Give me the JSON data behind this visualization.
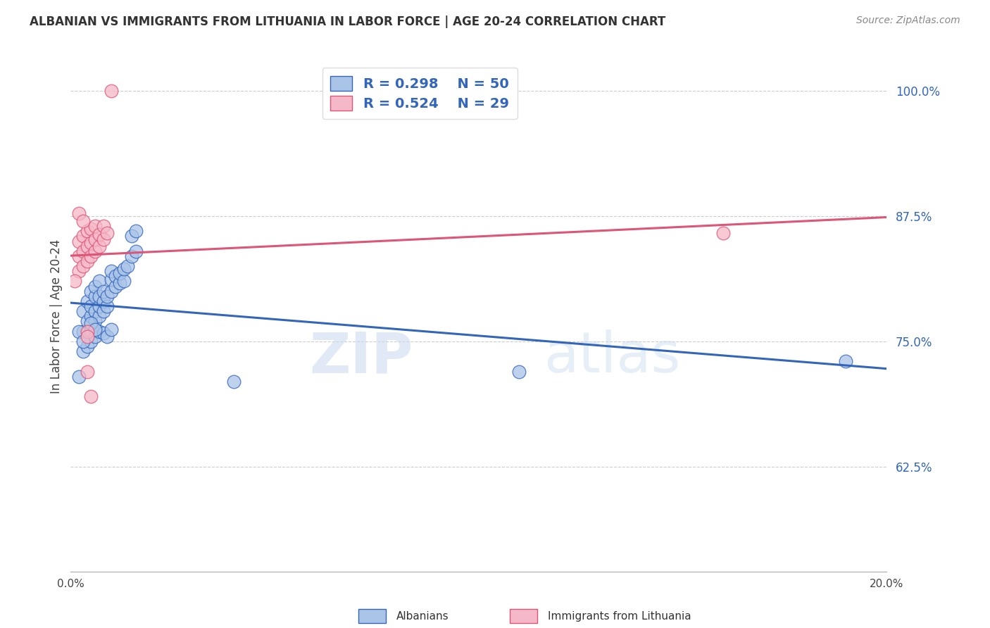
{
  "title": "ALBANIAN VS IMMIGRANTS FROM LITHUANIA IN LABOR FORCE | AGE 20-24 CORRELATION CHART",
  "source": "Source: ZipAtlas.com",
  "ylabel": "In Labor Force | Age 20-24",
  "legend_label1": "Albanians",
  "legend_label2": "Immigrants from Lithuania",
  "r_blue": 0.298,
  "n_blue": 50,
  "r_pink": 0.524,
  "n_pink": 29,
  "blue_color": "#aac4e8",
  "pink_color": "#f5b8c8",
  "blue_line_color": "#3366bb",
  "pink_line_color": "#dd5577",
  "watermark_zip": "ZIP",
  "watermark_atlas": "atlas",
  "blue_scatter": [
    [
      0.003,
      0.76
    ],
    [
      0.003,
      0.78
    ],
    [
      0.004,
      0.77
    ],
    [
      0.004,
      0.79
    ],
    [
      0.005,
      0.775
    ],
    [
      0.005,
      0.785
    ],
    [
      0.005,
      0.8
    ],
    [
      0.006,
      0.77
    ],
    [
      0.006,
      0.78
    ],
    [
      0.006,
      0.795
    ],
    [
      0.006,
      0.805
    ],
    [
      0.007,
      0.775
    ],
    [
      0.007,
      0.785
    ],
    [
      0.007,
      0.795
    ],
    [
      0.007,
      0.81
    ],
    [
      0.008,
      0.78
    ],
    [
      0.008,
      0.79
    ],
    [
      0.008,
      0.8
    ],
    [
      0.009,
      0.785
    ],
    [
      0.009,
      0.795
    ],
    [
      0.01,
      0.8
    ],
    [
      0.01,
      0.812
    ],
    [
      0.01,
      0.82
    ],
    [
      0.011,
      0.805
    ],
    [
      0.011,
      0.815
    ],
    [
      0.012,
      0.808
    ],
    [
      0.012,
      0.818
    ],
    [
      0.013,
      0.81
    ],
    [
      0.013,
      0.822
    ],
    [
      0.014,
      0.825
    ],
    [
      0.015,
      0.835
    ],
    [
      0.016,
      0.84
    ],
    [
      0.003,
      0.74
    ],
    [
      0.004,
      0.745
    ],
    [
      0.005,
      0.75
    ],
    [
      0.006,
      0.755
    ],
    [
      0.007,
      0.76
    ],
    [
      0.008,
      0.758
    ],
    [
      0.009,
      0.755
    ],
    [
      0.01,
      0.762
    ],
    [
      0.002,
      0.76
    ],
    [
      0.003,
      0.75
    ],
    [
      0.005,
      0.768
    ],
    [
      0.006,
      0.762
    ],
    [
      0.015,
      0.855
    ],
    [
      0.016,
      0.86
    ],
    [
      0.002,
      0.715
    ],
    [
      0.04,
      0.71
    ],
    [
      0.11,
      0.72
    ],
    [
      0.19,
      0.73
    ]
  ],
  "pink_scatter": [
    [
      0.002,
      0.82
    ],
    [
      0.002,
      0.835
    ],
    [
      0.002,
      0.85
    ],
    [
      0.003,
      0.825
    ],
    [
      0.003,
      0.84
    ],
    [
      0.003,
      0.855
    ],
    [
      0.004,
      0.83
    ],
    [
      0.004,
      0.845
    ],
    [
      0.004,
      0.86
    ],
    [
      0.005,
      0.835
    ],
    [
      0.005,
      0.848
    ],
    [
      0.005,
      0.862
    ],
    [
      0.006,
      0.84
    ],
    [
      0.006,
      0.852
    ],
    [
      0.006,
      0.865
    ],
    [
      0.007,
      0.845
    ],
    [
      0.007,
      0.857
    ],
    [
      0.008,
      0.852
    ],
    [
      0.008,
      0.865
    ],
    [
      0.009,
      0.858
    ],
    [
      0.002,
      0.878
    ],
    [
      0.003,
      0.87
    ],
    [
      0.001,
      0.81
    ],
    [
      0.004,
      0.76
    ],
    [
      0.004,
      0.755
    ],
    [
      0.004,
      0.72
    ],
    [
      0.005,
      0.695
    ],
    [
      0.16,
      0.858
    ],
    [
      0.01,
      1.0
    ]
  ],
  "xlim": [
    0.0,
    0.2
  ],
  "ylim": [
    0.52,
    1.03
  ],
  "yticks": [
    0.625,
    0.75,
    0.875,
    1.0
  ],
  "ytick_labels": [
    "62.5%",
    "75.0%",
    "87.5%",
    "100.0%"
  ],
  "xtick_positions": [
    0.0,
    0.05,
    0.1,
    0.15,
    0.2
  ],
  "xtick_labels": [
    "0.0%",
    "",
    "",
    "",
    "20.0%"
  ]
}
